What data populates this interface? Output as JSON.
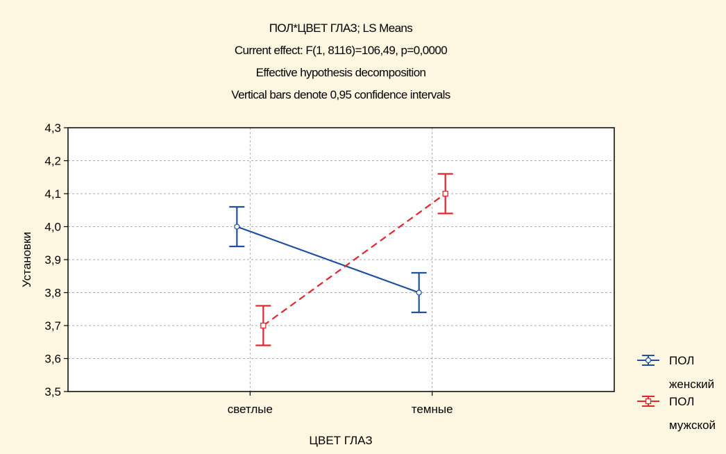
{
  "chart_data": {
    "type": "line",
    "title_lines": [
      "ПОЛ*ЦВЕТ ГЛАЗ; LS Means",
      "Current effect: F(1, 8116)=106,49, p=0,0000",
      "Effective hypothesis decomposition",
      "Vertical bars denote 0,95 confidence intervals"
    ],
    "xlabel": "ЦВЕТ ГЛАЗ",
    "ylabel": "Установки",
    "categories": [
      "светлые",
      "темные"
    ],
    "ylim": [
      3.5,
      4.3
    ],
    "yticks": [
      3.5,
      3.6,
      3.7,
      3.8,
      3.9,
      4.0,
      4.1,
      4.2,
      4.3
    ],
    "ytick_labels": [
      "3,5",
      "3,6",
      "3,7",
      "3,8",
      "3,9",
      "4,0",
      "4,1",
      "4,2",
      "4,3"
    ],
    "grid": true,
    "legend_position": "right",
    "series": [
      {
        "name_line1": "ПОЛ",
        "name_line2": "женский",
        "values": [
          4.0,
          3.8
        ],
        "ci_lower": [
          3.94,
          3.74
        ],
        "ci_upper": [
          4.06,
          3.86
        ],
        "color": "#1f4fa0",
        "dashed": false,
        "marker": "circle"
      },
      {
        "name_line1": "ПОЛ",
        "name_line2": "мужской",
        "values": [
          3.7,
          4.1
        ],
        "ci_lower": [
          3.64,
          4.04
        ],
        "ci_upper": [
          3.76,
          4.16
        ],
        "color": "#e2262b",
        "dashed": true,
        "marker": "square"
      }
    ]
  }
}
